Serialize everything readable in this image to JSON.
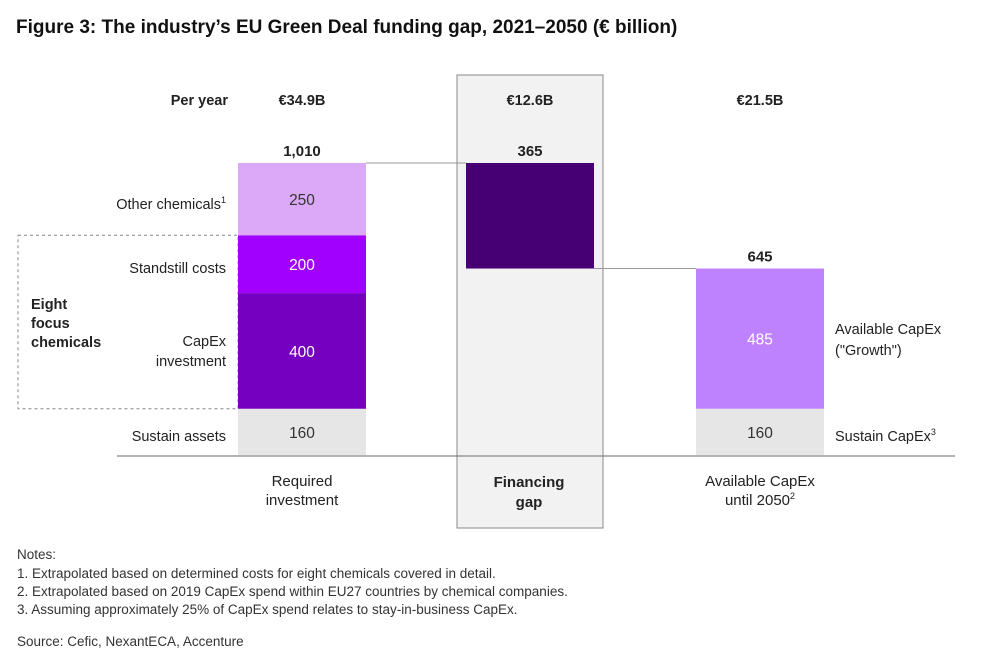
{
  "title": "Figure 3: The industry’s EU Green Deal funding gap, 2021–2050 (€ billion)",
  "per_year_label": "Per year",
  "per_year_values": [
    "€34.9B",
    "€12.6B",
    "€21.5B"
  ],
  "group_label": [
    "Eight",
    "focus",
    "chemicals"
  ],
  "colors": {
    "other_chemicals": "#dca9f8",
    "standstill": "#a100ff",
    "capex_investment": "#7500c0",
    "financing_gap": "#460073",
    "available_growth": "#be82ff",
    "sustain": "#e6e6e6",
    "highlight_panel": "#f2f2f2"
  },
  "chart_data": {
    "type": "bar",
    "subtype": "waterfall",
    "title": "Figure 3: The industry’s EU Green Deal funding gap, 2021–2050 (€ billion)",
    "categories": [
      "Required investment",
      "Financing gap",
      "Available CapEx until 2050"
    ],
    "category_labels": [
      [
        "Required",
        "investment"
      ],
      [
        "Financing",
        "gap"
      ],
      [
        "Available CapEx",
        "until 2050",
        "2"
      ]
    ],
    "totals": [
      "1,010",
      "365",
      "645"
    ],
    "ylim": [
      0,
      1010
    ],
    "bars": [
      {
        "category": "Required investment",
        "segments": [
          {
            "name": "Sustain assets",
            "value": 160,
            "color": "sustain"
          },
          {
            "name": "CapEx investment",
            "value": 400,
            "color": "capex_investment"
          },
          {
            "name": "Standstill costs",
            "value": 200,
            "color": "standstill"
          },
          {
            "name": "Other chemicals",
            "value": 250,
            "color": "other_chemicals"
          }
        ]
      },
      {
        "category": "Financing gap",
        "base": 645,
        "segments": [
          {
            "name": "Financing gap",
            "value": 365,
            "color": "financing_gap"
          }
        ]
      },
      {
        "category": "Available CapEx until 2050",
        "segments": [
          {
            "name": "Sustain CapEx",
            "value": 160,
            "color": "sustain"
          },
          {
            "name": "Available CapEx (\"Growth\")",
            "value": 485,
            "color": "available_growth"
          }
        ]
      }
    ],
    "segment_labels_left": [
      {
        "text": "Other chemicals",
        "sup": "1"
      },
      {
        "text": "Standstill costs",
        "sup": ""
      },
      {
        "text": "CapEx",
        "text2": "investment",
        "sup": ""
      },
      {
        "text": "Sustain assets",
        "sup": ""
      }
    ],
    "segment_labels_right": [
      {
        "text": "Available CapEx",
        "text2": "(\"Growth\")",
        "sup": ""
      },
      {
        "text": "Sustain CapEx",
        "sup": "3"
      }
    ]
  },
  "notes": {
    "heading": "Notes:",
    "items": [
      "1. Extrapolated based on determined costs for eight chemicals covered in detail.",
      "2. Extrapolated based on 2019 CapEx spend within EU27 countries by chemical companies.",
      "3. Assuming approximately 25% of CapEx spend relates to stay-in-business CapEx."
    ],
    "source": "Source: Cefic, NexantECA, Accenture"
  }
}
